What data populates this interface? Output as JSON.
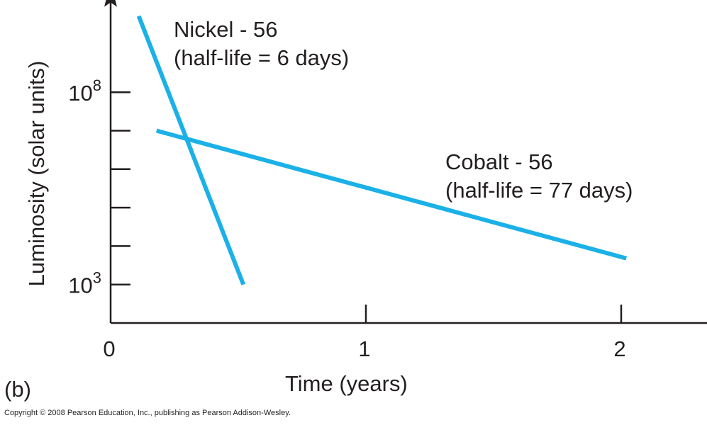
{
  "chart_data": {
    "type": "line",
    "panel_label": "(b)",
    "xlabel": "Time (years)",
    "ylabel": "Luminosity (solar units)",
    "yscale": "log",
    "xlim": [
      0,
      2.3
    ],
    "ylim_log10": [
      2,
      10.5
    ],
    "x_ticks": [
      {
        "value": 0,
        "label": "0"
      },
      {
        "value": 1,
        "label": "1"
      },
      {
        "value": 2,
        "label": "2"
      }
    ],
    "y_tick_log10": [
      3,
      4,
      5,
      6,
      7,
      8
    ],
    "y_tick_labels": [
      {
        "base": "10",
        "exp": "3",
        "log10": 3
      },
      {
        "base": "10",
        "exp": "8",
        "log10": 8
      }
    ],
    "series": [
      {
        "name": "nickel",
        "title": "Nickel - 56",
        "subtitle": "(half-life = 6 days)",
        "color": "#1bb1e7",
        "x": [
          0.11,
          0.52
        ],
        "log10_y": [
          9.98,
          3.0
        ]
      },
      {
        "name": "cobalt",
        "title": "Cobalt - 56",
        "subtitle": "(half-life = 77 days)",
        "color": "#1bb1e7",
        "x": [
          0.18,
          2.02
        ],
        "log10_y": [
          7.0,
          3.68
        ]
      }
    ]
  },
  "copyright": "Copyright © 2008 Pearson Education, Inc., publishing as Pearson Addison-Wesley."
}
